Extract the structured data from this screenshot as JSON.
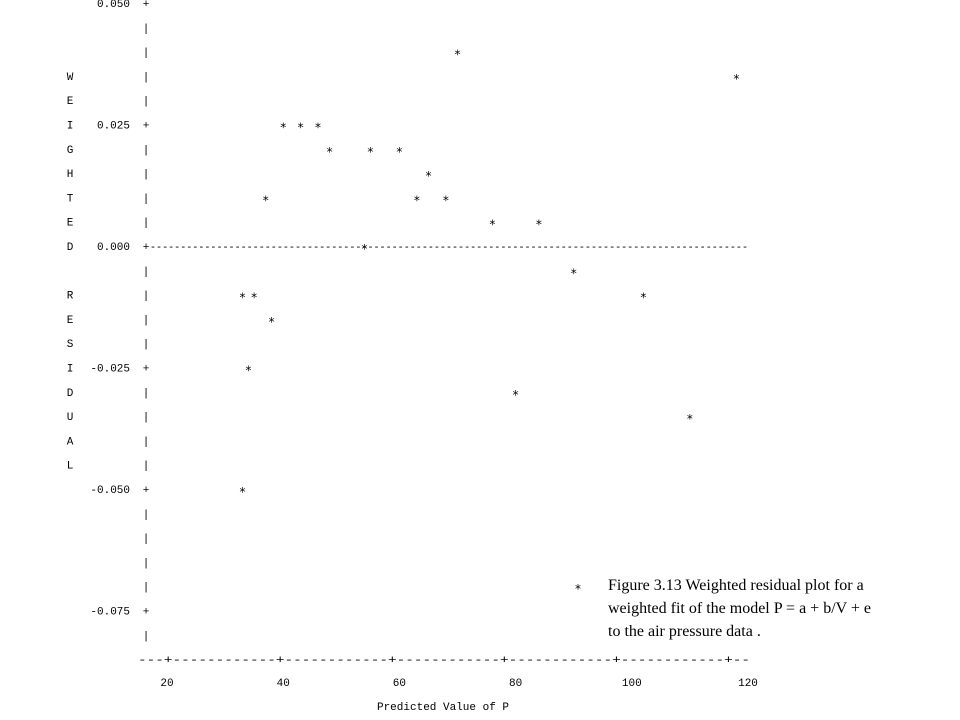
{
  "chart_data": {
    "type": "scatter",
    "style": "ascii-line-printer",
    "ylabel": "WEIGHTED RESIDUAL",
    "xlabel": "Predicted Value of P",
    "marker": "*",
    "x_ticks": [
      "20",
      "40",
      "60",
      "80",
      "100",
      "120"
    ],
    "y_ticks": [
      "0.050",
      "0.025",
      "0.000",
      "-0.025",
      "-0.050",
      "-0.075"
    ],
    "xlim": [
      20,
      120
    ],
    "ylim": [
      -0.075,
      0.05
    ],
    "points": [
      {
        "x": 70,
        "y": 0.04
      },
      {
        "x": 118,
        "y": 0.035
      },
      {
        "x": 40,
        "y": 0.025
      },
      {
        "x": 43,
        "y": 0.025
      },
      {
        "x": 46,
        "y": 0.025
      },
      {
        "x": 48,
        "y": 0.02
      },
      {
        "x": 55,
        "y": 0.02
      },
      {
        "x": 60,
        "y": 0.02
      },
      {
        "x": 65,
        "y": 0.015
      },
      {
        "x": 37,
        "y": 0.01
      },
      {
        "x": 63,
        "y": 0.01
      },
      {
        "x": 68,
        "y": 0.01
      },
      {
        "x": 76,
        "y": 0.005
      },
      {
        "x": 84,
        "y": 0.005
      },
      {
        "x": 54,
        "y": 0.0
      },
      {
        "x": 90,
        "y": -0.005
      },
      {
        "x": 33,
        "y": -0.01
      },
      {
        "x": 35,
        "y": -0.01
      },
      {
        "x": 102,
        "y": -0.01
      },
      {
        "x": 38,
        "y": -0.015
      },
      {
        "x": 34,
        "y": -0.025
      },
      {
        "x": 80,
        "y": -0.03
      },
      {
        "x": 110,
        "y": -0.035
      },
      {
        "x": 33,
        "y": -0.05
      }
    ],
    "caption": {
      "marker": "*",
      "lines": [
        "Figure 3.13  Weighted residual  plot for a",
        "weighted fit of the model P = a + b/V + e",
        "to the air pressure data ."
      ]
    }
  }
}
